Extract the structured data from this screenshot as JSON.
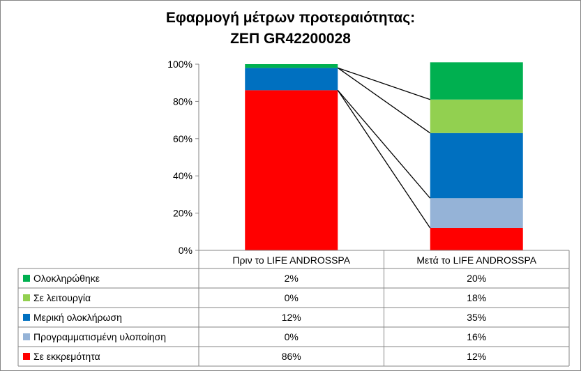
{
  "chart_data": {
    "type": "bar",
    "stacked": true,
    "title_line1": "Εφαρμογή μέτρων προτεραιότητας:",
    "title_line2": "ΖΕΠ GR42200028",
    "categories": [
      "Πριν το LIFE ANDROSSPA",
      "Μετά το LIFE ANDROSSPA"
    ],
    "ylim": [
      0,
      100
    ],
    "yticks": [
      "0%",
      "20%",
      "40%",
      "60%",
      "80%",
      "100%"
    ],
    "y_tick_values": [
      0,
      20,
      40,
      60,
      80,
      100
    ],
    "grid": false,
    "legend": "data-table",
    "series": [
      {
        "name": "Σε εκκρεμότητα",
        "values": [
          86,
          12
        ],
        "labels": [
          "86%",
          "12%"
        ],
        "color": "#ff0000"
      },
      {
        "name": "Προγραμματισμένη υλοποίηση",
        "values": [
          0,
          16
        ],
        "labels": [
          "0%",
          "16%"
        ],
        "color": "#95b3d7"
      },
      {
        "name": "Μερική ολοκλήρωση",
        "values": [
          12,
          35
        ],
        "labels": [
          "12%",
          "35%"
        ],
        "color": "#0070c0"
      },
      {
        "name": "Σε λειτουργία",
        "values": [
          0,
          18
        ],
        "labels": [
          "0%",
          "18%"
        ],
        "color": "#92d050"
      },
      {
        "name": "Ολοκληρώθηκε",
        "values": [
          2,
          20
        ],
        "labels": [
          "2%",
          "20%"
        ],
        "color": "#00b050"
      }
    ]
  }
}
